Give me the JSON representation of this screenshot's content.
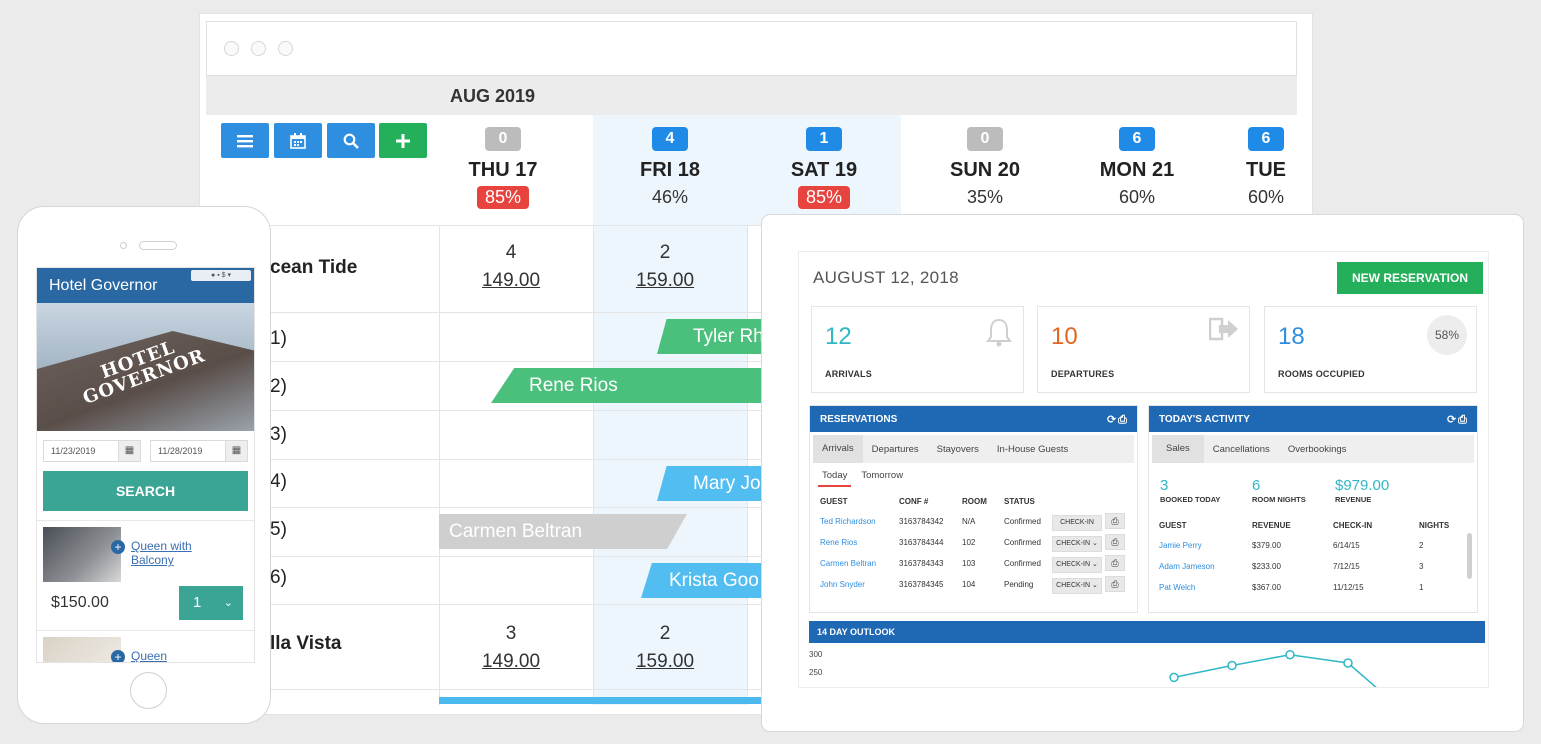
{
  "calendar": {
    "month": "AUG 2019",
    "days": [
      {
        "badge": "0",
        "badge_color": "#bcbcbc",
        "name": "THU 17",
        "occupancy": "85%",
        "high": true
      },
      {
        "badge": "4",
        "badge_color": "#1f8be6",
        "name": "FRI 18",
        "occupancy": "46%",
        "high": false
      },
      {
        "badge": "1",
        "badge_color": "#1f8be6",
        "name": "SAT 19",
        "occupancy": "85%",
        "high": true
      },
      {
        "badge": "0",
        "badge_color": "#bcbcbc",
        "name": "SUN 20",
        "occupancy": "35%",
        "high": false
      },
      {
        "badge": "6",
        "badge_color": "#1f8be6",
        "name": "MON 21",
        "occupancy": "60%",
        "high": false
      },
      {
        "badge": "6",
        "badge_color": "#1f8be6",
        "name": "TUE",
        "occupancy": "60%",
        "high": false
      }
    ],
    "room_types": [
      {
        "name": "cean Tide",
        "rates": [
          {
            "count": "4",
            "rate": "149.00"
          },
          {
            "count": "2",
            "rate": "159.00"
          }
        ]
      },
      {
        "name": "lla Vista",
        "rates": [
          {
            "count": "3",
            "rate": "149.00"
          },
          {
            "count": "2",
            "rate": "159.00"
          }
        ]
      }
    ],
    "rooms": [
      "1)",
      "2)",
      "3)",
      "4)",
      "5)",
      "6)"
    ],
    "reservations": [
      {
        "guest": "Tyler Rh",
        "color": "green"
      },
      {
        "guest": "Rene Rios",
        "color": "green"
      },
      {
        "guest": "Mary Jo",
        "color": "blue"
      },
      {
        "guest": "Carmen Beltran",
        "color": "grey"
      },
      {
        "guest": "Krista Goo",
        "color": "blue"
      }
    ],
    "toolbar_icons": [
      "menu-icon",
      "calendar-icon",
      "search-icon",
      "plus-icon"
    ]
  },
  "phone": {
    "hotel_name": "Hotel Governor",
    "sign_line1": "HOTEL",
    "sign_line2": "GOVERNOR",
    "checkin": "11/23/2019",
    "checkout": "11/28/2019",
    "search_label": "SEARCH",
    "room1_name_1": "Queen with",
    "room1_name_2": "Balcony",
    "room1_price": "$150.00",
    "room1_qty": "1",
    "room2_name": "Queen"
  },
  "dashboard": {
    "date": "AUGUST 12, 2018",
    "new_reservation": "NEW RESERVATION",
    "stats": [
      {
        "value": "12",
        "label": "ARRIVALS",
        "color": "#30b7c6",
        "icon": "bell-icon"
      },
      {
        "value": "10",
        "label": "DEPARTURES",
        "color": "#e0661f",
        "icon": "sign-out-icon"
      },
      {
        "value": "18",
        "label": "ROOMS OCCUPIED",
        "color": "#2e8ee0",
        "percent": "58%"
      }
    ],
    "reservations": {
      "title": "RESERVATIONS",
      "tabs": [
        "Arrivals",
        "Departures",
        "Stayovers",
        "In-House Guests"
      ],
      "subtabs": [
        "Today",
        "Tomorrow"
      ],
      "columns": [
        "GUEST",
        "CONF #",
        "ROOM",
        "STATUS"
      ],
      "rows": [
        {
          "guest": "Ted Richardson",
          "conf": "3163784342",
          "room": "N/A",
          "status": "Confirmed",
          "action": "CHECK-IN"
        },
        {
          "guest": "Rene Rios",
          "conf": "3163784344",
          "room": "102",
          "status": "Confirmed",
          "action": "CHECK-IN ⌄"
        },
        {
          "guest": "Carmen Beltran",
          "conf": "3163784343",
          "room": "103",
          "status": "Confirmed",
          "action": "CHECK-IN ⌄"
        },
        {
          "guest": "John Snyder",
          "conf": "3163784345",
          "room": "104",
          "status": "Pending",
          "action": "CHECK-IN ⌄"
        }
      ]
    },
    "activity": {
      "title": "TODAY'S ACTIVITY",
      "tabs": [
        "Sales",
        "Cancellations",
        "Overbookings"
      ],
      "summary": [
        {
          "value": "3",
          "label": "BOOKED TODAY"
        },
        {
          "value": "6",
          "label": "ROOM NIGHTS"
        },
        {
          "value": "$979.00",
          "label": "REVENUE"
        }
      ],
      "columns": [
        "GUEST",
        "REVENUE",
        "CHECK-IN",
        "NIGHTS"
      ],
      "rows": [
        {
          "guest": "Jamie Perry",
          "revenue": "$379.00",
          "checkin": "6/14/15",
          "nights": "2"
        },
        {
          "guest": "Adam Jameson",
          "revenue": "$233.00",
          "checkin": "7/12/15",
          "nights": "3"
        },
        {
          "guest": "Pat Welch",
          "revenue": "$367.00",
          "checkin": "11/12/15",
          "nights": "1"
        }
      ]
    },
    "outlook": {
      "title": "14 DAY OUTLOOK",
      "yticks": [
        "300",
        "250"
      ]
    }
  },
  "chart_data": {
    "type": "line",
    "title": "14 DAY OUTLOOK",
    "y_ticks": [
      300,
      250
    ],
    "series": [
      {
        "values": [
          235,
          268,
          298,
          275
        ]
      }
    ],
    "line_color": "#30b7c6",
    "note": "partially visible (cropped)"
  }
}
